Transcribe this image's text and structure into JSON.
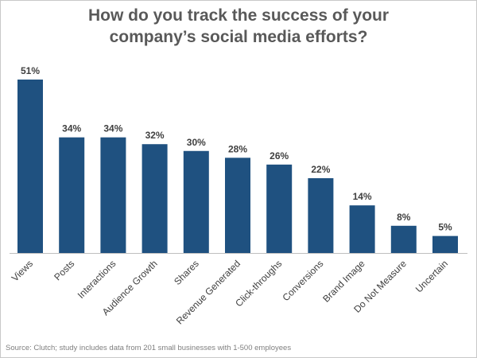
{
  "chart_data": {
    "type": "bar",
    "title_lines": [
      "How do you track the success of your",
      "company’s social media efforts?"
    ],
    "categories": [
      "Views",
      "Posts",
      "Interactions",
      "Audience Growth",
      "Shares",
      "Revenue Generated",
      "Click-throughs",
      "Conversions",
      "Brand Image",
      "Do Not Measure",
      "Uncertain"
    ],
    "values": [
      51,
      34,
      34,
      32,
      30,
      28,
      26,
      22,
      14,
      8,
      5
    ],
    "value_labels": [
      "51%",
      "34%",
      "34%",
      "32%",
      "30%",
      "28%",
      "26%",
      "22%",
      "14%",
      "8%",
      "5%"
    ],
    "ylim": [
      0,
      51
    ],
    "grid": false,
    "colors": {
      "bar": "#1f5180",
      "text": "#404040",
      "title": "#595959",
      "axis": "#bfbfbf"
    }
  },
  "source": "Source: Clutch; study includes data from 201 small businesses with 1-500 employees"
}
